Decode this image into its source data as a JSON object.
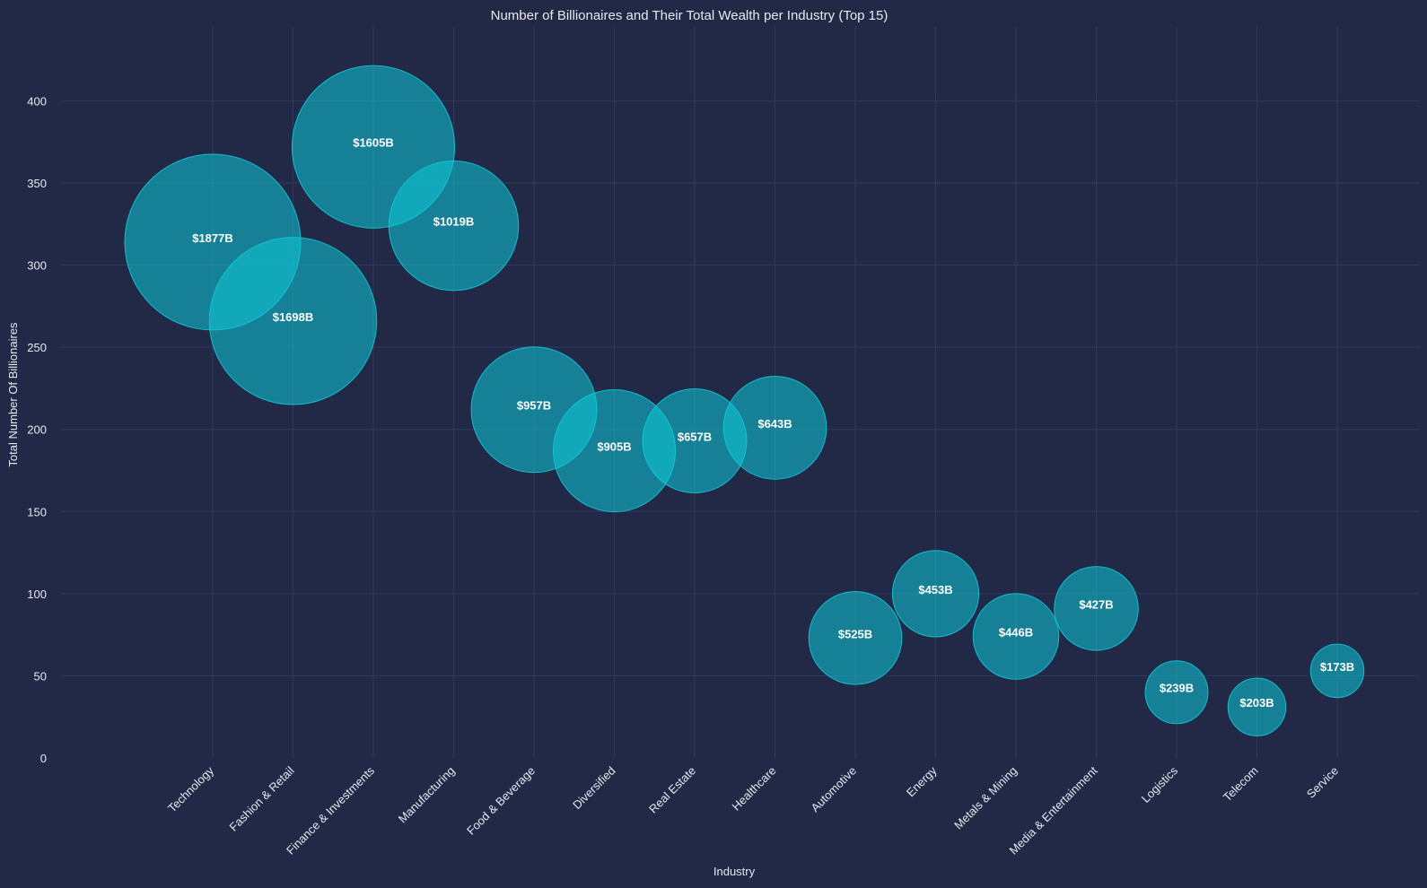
{
  "chart_data": {
    "type": "scatter",
    "title": "Number of Billionaires and Their Total Wealth per Industry (Top 15)",
    "xlabel": "Industry",
    "ylabel": "Total Number Of Billionaires",
    "ylim": [
      0,
      445
    ],
    "yticks": [
      0,
      50,
      100,
      150,
      200,
      250,
      300,
      350,
      400
    ],
    "grid": true,
    "bubble_color": "#0fc8d8",
    "background": "#212946",
    "categories": [
      "Technology",
      "Fashion & Retail",
      "Finance & Investments",
      "Manufacturing",
      "Food & Beverage",
      "Diversified",
      "Real Estate",
      "Healthcare",
      "Automotive",
      "Energy",
      "Metals & Mining",
      "Media & Entertainment",
      "Logistics",
      "Telecom",
      "Service"
    ],
    "values": [
      314,
      266,
      372,
      324,
      212,
      187,
      193,
      201,
      73,
      100,
      74,
      91,
      40,
      31,
      53
    ],
    "wealth_billions": [
      1877,
      1698,
      1605,
      1019,
      957,
      905,
      657,
      643,
      525,
      453,
      446,
      427,
      239,
      203,
      173
    ],
    "labels": [
      "$1877B",
      "$1698B",
      "$1605B",
      "$1019B",
      "$957B",
      "$905B",
      "$657B",
      "$643B",
      "$525B",
      "$453B",
      "$446B",
      "$427B",
      "$239B",
      "$203B",
      "$173B"
    ]
  }
}
